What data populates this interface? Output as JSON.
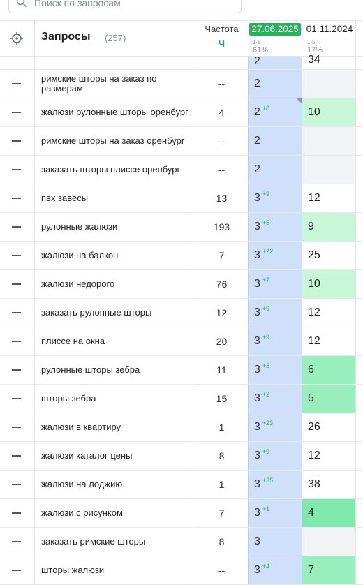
{
  "search": {
    "placeholder": "Поиск по запросам"
  },
  "header": {
    "queries_title": "Запросы",
    "queries_count": "(257)",
    "freq_title": "Частота",
    "freq_sub": "Ч",
    "date1": {
      "label": "27.06.2025",
      "range": "1-5",
      "pct": "61%"
    },
    "date2": {
      "label": "01.11.2024",
      "range": "1-5",
      "pct": "17%"
    }
  },
  "partial_row": {
    "d1": "2",
    "d2": "34"
  },
  "rows": [
    {
      "query": "римские шторы на заказ по размерам",
      "freq": "--",
      "pos1": "2",
      "delta": "",
      "pos2": "",
      "pos2_level": "empty"
    },
    {
      "query": "жалюзи рулонные шторы оренбург",
      "freq": "4",
      "pos1": "2",
      "delta": "+8",
      "pos2": "10",
      "pos2_level": "g1",
      "marker": true
    },
    {
      "query": "римские шторы на заказ оренбург",
      "freq": "--",
      "pos1": "2",
      "delta": "",
      "pos2": "",
      "pos2_level": "empty"
    },
    {
      "query": "заказать шторы плиссе оренбург",
      "freq": "--",
      "pos1": "2",
      "delta": "",
      "pos2": "",
      "pos2_level": "empty"
    },
    {
      "query": "пвх завесы",
      "freq": "13",
      "pos1": "3",
      "delta": "+9",
      "pos2": "12",
      "pos2_level": "none"
    },
    {
      "query": "рулонные жалюзи",
      "freq": "193",
      "pos1": "3",
      "delta": "+6",
      "pos2": "9",
      "pos2_level": "g1"
    },
    {
      "query": "жалюзи на балкон",
      "freq": "7",
      "pos1": "3",
      "delta": "+22",
      "pos2": "25",
      "pos2_level": "none"
    },
    {
      "query": "жалюзи недорого",
      "freq": "76",
      "pos1": "3",
      "delta": "+7",
      "pos2": "10",
      "pos2_level": "g1"
    },
    {
      "query": "заказать рулонные шторы",
      "freq": "12",
      "pos1": "3",
      "delta": "+9",
      "pos2": "12",
      "pos2_level": "none"
    },
    {
      "query": "плиссе на окна",
      "freq": "20",
      "pos1": "3",
      "delta": "+9",
      "pos2": "12",
      "pos2_level": "none"
    },
    {
      "query": "рулонные шторы зебра",
      "freq": "11",
      "pos1": "3",
      "delta": "+3",
      "pos2": "6",
      "pos2_level": "g2"
    },
    {
      "query": "шторы зебра",
      "freq": "15",
      "pos1": "3",
      "delta": "+2",
      "pos2": "5",
      "pos2_level": "g2"
    },
    {
      "query": "жалюзи в квартиру",
      "freq": "1",
      "pos1": "3",
      "delta": "+23",
      "pos2": "26",
      "pos2_level": "none"
    },
    {
      "query": "жалюзи каталог цены",
      "freq": "8",
      "pos1": "3",
      "delta": "+9",
      "pos2": "12",
      "pos2_level": "none"
    },
    {
      "query": "жалюзи на лоджию",
      "freq": "1",
      "pos1": "3",
      "delta": "+35",
      "pos2": "38",
      "pos2_level": "none"
    },
    {
      "query": "жалюзи с рисунком",
      "freq": "7",
      "pos1": "3",
      "delta": "+1",
      "pos2": "4",
      "pos2_level": "g3"
    },
    {
      "query": "заказать римские шторы",
      "freq": "8",
      "pos1": "3",
      "delta": "",
      "pos2": "",
      "pos2_level": "empty"
    },
    {
      "query": "шторы жалюзи",
      "freq": "--",
      "pos1": "3",
      "delta": "+4",
      "pos2": "7",
      "pos2_level": "g2"
    }
  ]
}
